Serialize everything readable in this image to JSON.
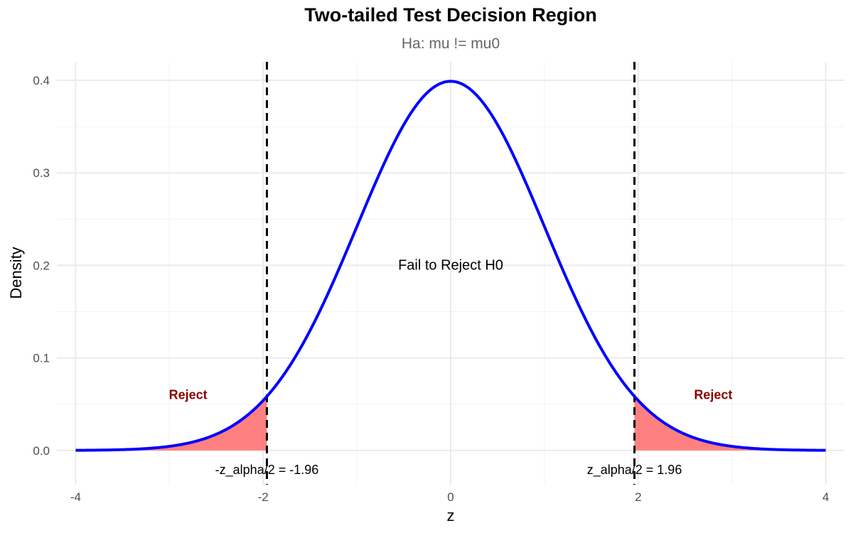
{
  "chart_data": {
    "type": "area",
    "title": "Two-tailed Test Decision Region",
    "subtitle": "Ha: mu != mu0",
    "xlabel": "z",
    "ylabel": "Density",
    "xlim": [
      -4.2,
      4.2
    ],
    "ylim": [
      -0.037,
      0.42
    ],
    "x_ticks": [
      -4,
      -2,
      0,
      2,
      4
    ],
    "x_tick_labels": [
      "-4",
      "-2",
      "0",
      "2",
      "4"
    ],
    "y_ticks": [
      0.0,
      0.1,
      0.2,
      0.3,
      0.4
    ],
    "y_tick_labels": [
      "0.0",
      "0.1",
      "0.2",
      "0.3",
      "0.4"
    ],
    "grid": true,
    "series": [
      {
        "type": "line",
        "color": "#0000ff",
        "x": [
          -4.0,
          -3.75,
          -3.5,
          -3.25,
          -3.0,
          -2.75,
          -2.5,
          -2.25,
          -2.0,
          -1.75,
          -1.5,
          -1.25,
          -1.0,
          -0.75,
          -0.5,
          -0.25,
          0.0,
          0.25,
          0.5,
          0.75,
          1.0,
          1.25,
          1.5,
          1.75,
          2.0,
          2.25,
          2.5,
          2.75,
          3.0,
          3.25,
          3.5,
          3.75,
          4.0
        ],
        "y": [
          0.0001,
          0.0004,
          0.0009,
          0.002,
          0.0044,
          0.0091,
          0.0175,
          0.0317,
          0.054,
          0.0863,
          0.1295,
          0.1826,
          0.242,
          0.3011,
          0.3521,
          0.3867,
          0.3989,
          0.3867,
          0.3521,
          0.3011,
          0.242,
          0.1826,
          0.1295,
          0.0863,
          0.054,
          0.0317,
          0.0175,
          0.0091,
          0.0044,
          0.002,
          0.0009,
          0.0004,
          0.0001
        ]
      }
    ],
    "rejection_regions": [
      {
        "from": -4.0,
        "to": -1.96,
        "color": "#ff8080"
      },
      {
        "from": 1.96,
        "to": 4.0,
        "color": "#ff8080"
      }
    ],
    "critical_lines": [
      {
        "x": -1.96,
        "label": "-z_alpha/2 = -1.96",
        "label_x": -1.96,
        "label_y": -0.021
      },
      {
        "x": 1.96,
        "label": "z_alpha/2 = 1.96",
        "label_x": 1.96,
        "label_y": -0.021
      }
    ],
    "annotations": [
      {
        "text": "Reject",
        "x": -2.8,
        "y": 0.06,
        "color": "#8b0000",
        "bold": true
      },
      {
        "text": "Reject",
        "x": 2.8,
        "y": 0.06,
        "color": "#8b0000",
        "bold": true
      },
      {
        "text": "Fail to Reject H0",
        "x": 0,
        "y": 0.2,
        "color": "#000000",
        "bold": false
      }
    ]
  }
}
